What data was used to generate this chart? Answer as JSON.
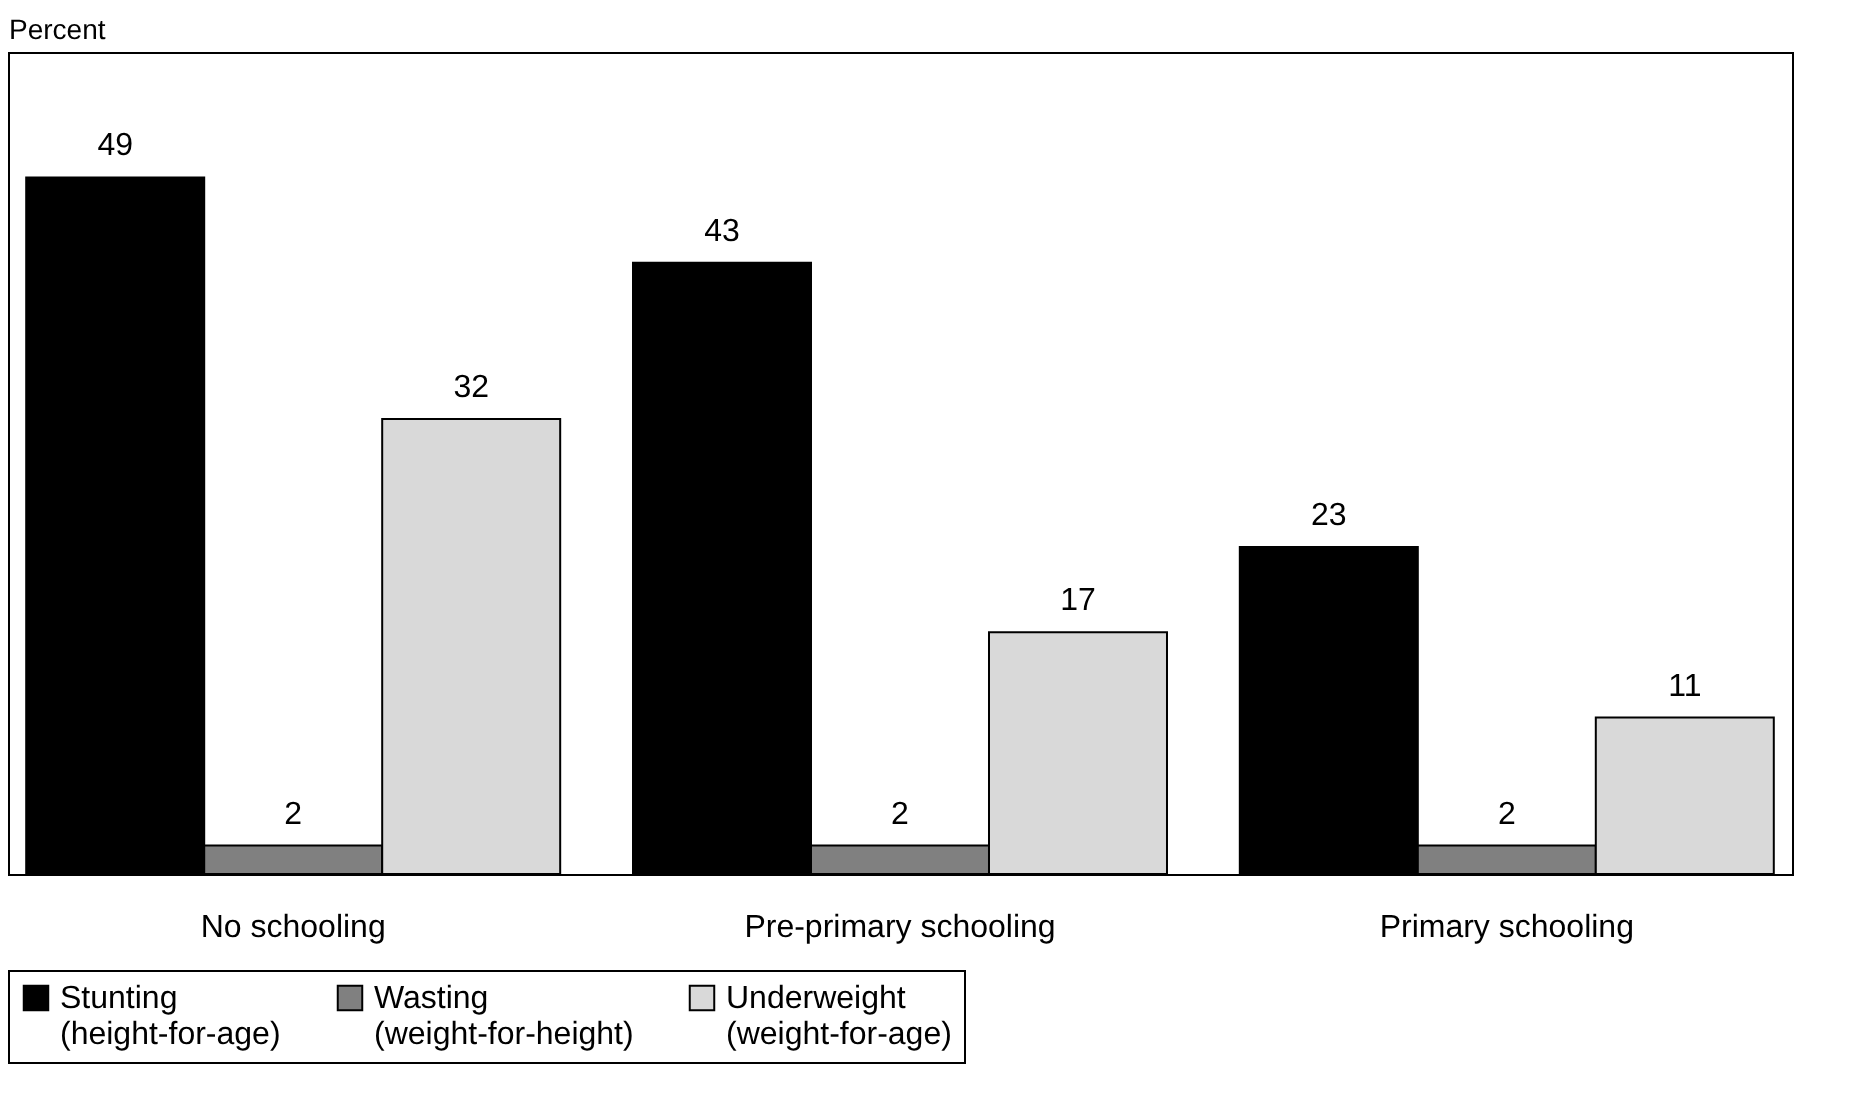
{
  "chart_data": {
    "type": "bar",
    "ylabel": "Percent",
    "categories": [
      "No schooling",
      "Pre-primary schooling",
      "Primary schooling"
    ],
    "series": [
      {
        "name": "Stunting (height-for-age)",
        "color": "#000000",
        "values": [
          49,
          43,
          23
        ]
      },
      {
        "name": "Wasting (weight-for-height)",
        "color": "#808080",
        "values": [
          2,
          2,
          2
        ]
      },
      {
        "name": "Underweight (weight-for-age)",
        "color": "#d9d9d9",
        "values": [
          32,
          17,
          11
        ]
      }
    ],
    "data_labels": true,
    "legend": "bottom",
    "grid": false
  }
}
